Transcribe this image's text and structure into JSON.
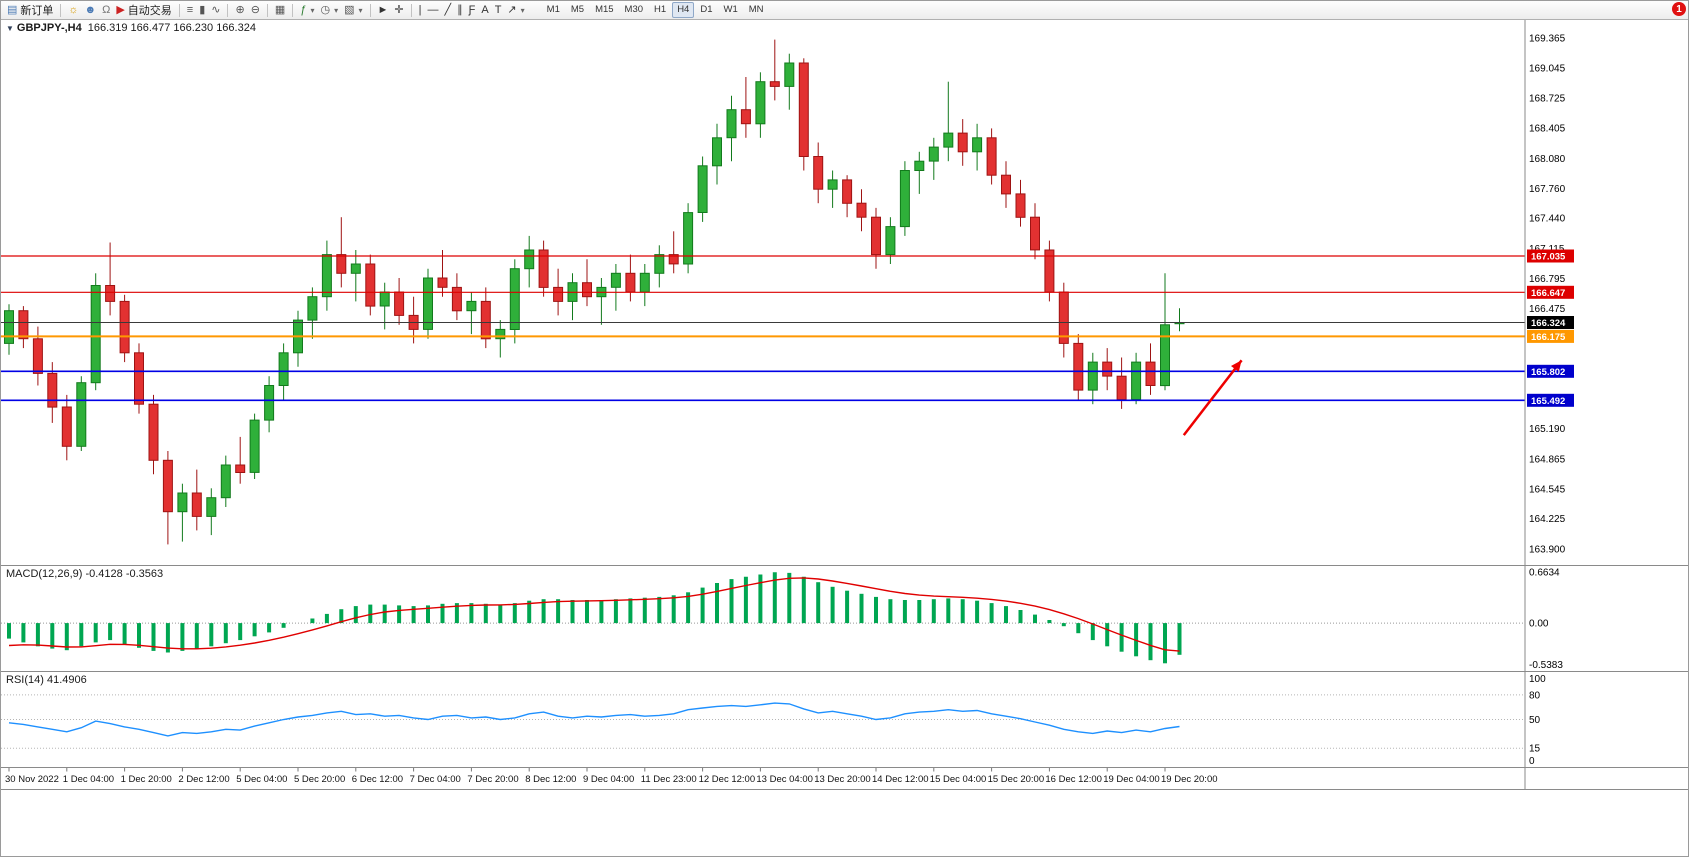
{
  "app": {
    "notification_count": "1"
  },
  "toolbar": {
    "items": [
      {
        "name": "new-order-button",
        "icon": "new-order-icon",
        "glyph": "▤",
        "glyph_color": "#4a7ab5",
        "label": "新订单"
      },
      {
        "sep": true
      },
      {
        "name": "charts-button",
        "icon": "bulb-icon",
        "glyph": "☼",
        "glyph_color": "#d79b00"
      },
      {
        "name": "profile-button",
        "icon": "person-icon",
        "glyph": "☻",
        "glyph_color": "#4a7ab5"
      },
      {
        "name": "sounds-button",
        "icon": "headset-icon",
        "glyph": "Ω",
        "glyph_color": "#777777"
      },
      {
        "name": "auto-trading-button",
        "icon": "play-icon",
        "glyph": "▶",
        "glyph_color": "#cc2222",
        "label": "自动交易"
      },
      {
        "sep": true
      },
      {
        "name": "bar-chart-button",
        "icon": "bar-chart-icon",
        "glyph": "≡",
        "glyph_color": "#555555"
      },
      {
        "name": "candlestick-chart-button",
        "icon": "candlestick-icon",
        "glyph": "▮",
        "glyph_color": "#555555"
      },
      {
        "name": "line-chart-button",
        "icon": "line-chart-icon",
        "glyph": "∿",
        "glyph_color": "#555555"
      },
      {
        "sep": true
      },
      {
        "name": "zoom-in-button",
        "icon": "zoom-in-icon",
        "glyph": "⊕",
        "glyph_color": "#555555"
      },
      {
        "name": "zoom-out-button",
        "icon": "zoom-out-icon",
        "glyph": "⊖",
        "glyph_color": "#555555"
      },
      {
        "sep": true
      },
      {
        "name": "tile-windows-button",
        "icon": "tile-windows-icon",
        "glyph": "▦",
        "glyph_color": "#555555"
      },
      {
        "sep": true
      },
      {
        "name": "indicators-button",
        "icon": "indicators-icon",
        "glyph": "ƒ",
        "glyph_color": "#2e7d32",
        "caret": true
      },
      {
        "name": "periods-button",
        "icon": "clock-icon",
        "glyph": "◷",
        "glyph_color": "#555555",
        "caret": true
      },
      {
        "name": "templates-button",
        "icon": "template-icon",
        "glyph": "▧",
        "glyph_color": "#555555",
        "caret": true
      },
      {
        "sep": true
      },
      {
        "name": "cursor-button",
        "icon": "cursor-icon",
        "glyph": "►",
        "glyph_color": "#333333"
      },
      {
        "name": "crosshair-button",
        "icon": "crosshair-icon",
        "glyph": "✛",
        "glyph_color": "#333333"
      },
      {
        "sep": true
      },
      {
        "name": "vertical-line-button",
        "icon": "vertical-line-icon",
        "glyph": "|",
        "glyph_color": "#333333"
      },
      {
        "name": "horizontal-line-button",
        "icon": "horizontal-line-icon",
        "glyph": "—",
        "glyph_color": "#333333"
      },
      {
        "name": "trendline-button",
        "icon": "trendline-icon",
        "glyph": "╱",
        "glyph_color": "#333333"
      },
      {
        "name": "channel-button",
        "icon": "channel-icon",
        "glyph": "∥",
        "glyph_color": "#333333"
      },
      {
        "name": "fibonacci-button",
        "icon": "fibonacci-icon",
        "glyph": "Ƒ",
        "glyph_color": "#333333"
      },
      {
        "name": "text-button",
        "icon": "text-icon",
        "glyph": "A",
        "glyph_color": "#333333"
      },
      {
        "name": "label-button",
        "icon": "label-icon",
        "glyph": "T",
        "glyph_color": "#333333"
      },
      {
        "name": "arrows-button",
        "icon": "arrow-object-icon",
        "glyph": "↗",
        "glyph_color": "#333333",
        "caret": true
      }
    ],
    "timeframes": [
      "M1",
      "M5",
      "M15",
      "M30",
      "H1",
      "H4",
      "D1",
      "W1",
      "MN"
    ],
    "active_timeframe": "H4"
  },
  "main_chart": {
    "symbol": "GBPJPY-,H4",
    "ohlc_text": "166.319 166.477 166.230 166.324"
  },
  "macd": {
    "label": "MACD(12,26,9) -0.4128 -0.3563",
    "axis_labels": [
      "0.6634",
      "0.00",
      "-0.5383"
    ]
  },
  "rsi": {
    "label": "RSI(14) 41.4906",
    "axis_labels": [
      "100",
      "80",
      "50",
      "15",
      "0"
    ]
  },
  "chart_data": {
    "type": "candlestick",
    "symbol": "GBPJPY-",
    "timeframe": "H4",
    "ohlc_current": {
      "open": 166.319,
      "high": 166.477,
      "low": 166.23,
      "close": 166.324
    },
    "price_axis": {
      "min": 163.9,
      "max": 169.365,
      "labels": [
        "169.365",
        "169.045",
        "168.725",
        "168.405",
        "168.080",
        "167.760",
        "167.440",
        "167.115",
        "166.795",
        "166.475",
        "165.190",
        "164.865",
        "164.545",
        "164.225",
        "163.900"
      ]
    },
    "time_labels": [
      "30 Nov 2022",
      "1 Dec 04:00",
      "1 Dec 20:00",
      "2 Dec 12:00",
      "5 Dec 04:00",
      "5 Dec 20:00",
      "6 Dec 12:00",
      "7 Dec 04:00",
      "7 Dec 20:00",
      "8 Dec 12:00",
      "9 Dec 04:00",
      "11 Dec 23:00",
      "12 Dec 12:00",
      "13 Dec 04:00",
      "13 Dec 20:00",
      "14 Dec 12:00",
      "15 Dec 04:00",
      "15 Dec 20:00",
      "16 Dec 12:00",
      "19 Dec 04:00",
      "19 Dec 20:00"
    ],
    "bars_per_label": 4,
    "candles": [
      [
        166.1,
        166.52,
        165.98,
        166.45
      ],
      [
        166.45,
        166.5,
        166.05,
        166.15
      ],
      [
        166.15,
        166.28,
        165.65,
        165.78
      ],
      [
        165.78,
        165.9,
        165.25,
        165.42
      ],
      [
        165.42,
        165.55,
        164.85,
        165.0
      ],
      [
        165.0,
        165.75,
        164.95,
        165.68
      ],
      [
        165.68,
        166.85,
        165.6,
        166.72
      ],
      [
        166.72,
        167.18,
        166.4,
        166.55
      ],
      [
        166.55,
        166.62,
        165.9,
        166.0
      ],
      [
        166.0,
        166.1,
        165.35,
        165.45
      ],
      [
        165.45,
        165.55,
        164.7,
        164.85
      ],
      [
        164.85,
        164.95,
        163.95,
        164.3
      ],
      [
        164.3,
        164.6,
        163.98,
        164.5
      ],
      [
        164.5,
        164.75,
        164.1,
        164.25
      ],
      [
        164.25,
        164.55,
        164.05,
        164.45
      ],
      [
        164.45,
        164.9,
        164.35,
        164.8
      ],
      [
        164.8,
        165.1,
        164.6,
        164.72
      ],
      [
        164.72,
        165.35,
        164.65,
        165.28
      ],
      [
        165.28,
        165.75,
        165.15,
        165.65
      ],
      [
        165.65,
        166.1,
        165.5,
        166.0
      ],
      [
        166.0,
        166.45,
        165.85,
        166.35
      ],
      [
        166.35,
        166.7,
        166.15,
        166.6
      ],
      [
        166.6,
        167.2,
        166.45,
        167.05
      ],
      [
        167.05,
        167.45,
        166.7,
        166.85
      ],
      [
        166.85,
        167.1,
        166.55,
        166.95
      ],
      [
        166.95,
        167.05,
        166.4,
        166.5
      ],
      [
        166.5,
        166.75,
        166.25,
        166.65
      ],
      [
        166.65,
        166.8,
        166.3,
        166.4
      ],
      [
        166.4,
        166.6,
        166.1,
        166.25
      ],
      [
        166.25,
        166.9,
        166.15,
        166.8
      ],
      [
        166.8,
        167.1,
        166.6,
        166.7
      ],
      [
        166.7,
        166.85,
        166.35,
        166.45
      ],
      [
        166.45,
        166.65,
        166.2,
        166.55
      ],
      [
        166.55,
        166.7,
        166.05,
        166.15
      ],
      [
        166.15,
        166.35,
        165.95,
        166.25
      ],
      [
        166.25,
        167.0,
        166.1,
        166.9
      ],
      [
        166.9,
        167.25,
        166.7,
        167.1
      ],
      [
        167.1,
        167.2,
        166.6,
        166.7
      ],
      [
        166.7,
        166.9,
        166.4,
        166.55
      ],
      [
        166.55,
        166.85,
        166.35,
        166.75
      ],
      [
        166.75,
        167.0,
        166.5,
        166.6
      ],
      [
        166.6,
        166.8,
        166.3,
        166.7
      ],
      [
        166.7,
        166.95,
        166.45,
        166.85
      ],
      [
        166.85,
        167.05,
        166.55,
        166.65
      ],
      [
        166.65,
        166.95,
        166.5,
        166.85
      ],
      [
        166.85,
        167.15,
        166.7,
        167.05
      ],
      [
        167.05,
        167.3,
        166.85,
        166.95
      ],
      [
        166.95,
        167.6,
        166.85,
        167.5
      ],
      [
        167.5,
        168.1,
        167.4,
        168.0
      ],
      [
        168.0,
        168.45,
        167.8,
        168.3
      ],
      [
        168.3,
        168.75,
        168.05,
        168.6
      ],
      [
        168.6,
        168.95,
        168.3,
        168.45
      ],
      [
        168.45,
        169.0,
        168.3,
        168.9
      ],
      [
        168.9,
        169.35,
        168.7,
        168.85
      ],
      [
        168.85,
        169.2,
        168.6,
        169.1
      ],
      [
        169.1,
        169.15,
        167.95,
        168.1
      ],
      [
        168.1,
        168.25,
        167.6,
        167.75
      ],
      [
        167.75,
        167.95,
        167.55,
        167.85
      ],
      [
        167.85,
        167.9,
        167.45,
        167.6
      ],
      [
        167.6,
        167.75,
        167.3,
        167.45
      ],
      [
        167.45,
        167.55,
        166.9,
        167.05
      ],
      [
        167.05,
        167.45,
        166.95,
        167.35
      ],
      [
        167.35,
        168.05,
        167.25,
        167.95
      ],
      [
        167.95,
        168.15,
        167.7,
        168.05
      ],
      [
        168.05,
        168.3,
        167.85,
        168.2
      ],
      [
        168.2,
        168.9,
        168.05,
        168.35
      ],
      [
        168.35,
        168.5,
        168.0,
        168.15
      ],
      [
        168.15,
        168.45,
        167.95,
        168.3
      ],
      [
        168.3,
        168.4,
        167.8,
        167.9
      ],
      [
        167.9,
        168.05,
        167.55,
        167.7
      ],
      [
        167.7,
        167.85,
        167.35,
        167.45
      ],
      [
        167.45,
        167.6,
        167.0,
        167.1
      ],
      [
        167.1,
        167.2,
        166.55,
        166.65
      ],
      [
        166.65,
        166.75,
        165.95,
        166.1
      ],
      [
        166.1,
        166.2,
        165.5,
        165.6
      ],
      [
        165.6,
        166.0,
        165.45,
        165.9
      ],
      [
        165.9,
        166.05,
        165.6,
        165.75
      ],
      [
        165.75,
        165.95,
        165.4,
        165.5
      ],
      [
        165.5,
        166.0,
        165.45,
        165.9
      ],
      [
        165.9,
        166.1,
        165.55,
        165.65
      ],
      [
        165.65,
        166.85,
        165.6,
        166.3
      ],
      [
        166.319,
        166.477,
        166.23,
        166.324
      ]
    ],
    "hlines": [
      {
        "price": 167.035,
        "color": "#dd0000",
        "width": 1.2,
        "badge": "167.035",
        "badge_color": "#dd0000"
      },
      {
        "price": 166.647,
        "color": "#dd0000",
        "width": 1.2,
        "badge": "166.647",
        "badge_color": "#dd0000"
      },
      {
        "price": 166.324,
        "color": "#3a3a3a",
        "width": 1,
        "badge": "166.324",
        "badge_color": "#000000"
      },
      {
        "price": 166.175,
        "color": "#ff9800",
        "width": 2,
        "badge": "166.175",
        "badge_color": "#ff9800"
      },
      {
        "price": 165.802,
        "color": "#0000e6",
        "width": 1.6,
        "badge": "165.802",
        "badge_color": "#0000cc"
      },
      {
        "price": 165.492,
        "color": "#0000e6",
        "width": 1.6,
        "badge": "165.492",
        "badge_color": "#0000cc"
      }
    ],
    "arrow_annotation": {
      "color": "#ee0000",
      "from_bar": 81.3,
      "from_price": 165.12,
      "to_bar": 85.3,
      "to_price": 165.92
    },
    "candle_colors": {
      "up_fill": "#2fb03a",
      "up_stroke": "#127a1c",
      "down_fill": "#e23131",
      "down_stroke": "#9e1313"
    },
    "macd": {
      "params": "12,26,9",
      "last_macd": -0.4128,
      "last_signal": -0.3563,
      "scale_max": 0.6634,
      "scale_min": -0.5383,
      "histogram_color": "#00a651",
      "signal_color": "#e00000",
      "values": [
        -0.2,
        -0.25,
        -0.3,
        -0.33,
        -0.35,
        -0.3,
        -0.25,
        -0.22,
        -0.28,
        -0.32,
        -0.36,
        -0.38,
        -0.36,
        -0.33,
        -0.3,
        -0.26,
        -0.22,
        -0.17,
        -0.12,
        -0.06,
        0.0,
        0.06,
        0.12,
        0.18,
        0.22,
        0.24,
        0.24,
        0.23,
        0.22,
        0.23,
        0.25,
        0.26,
        0.26,
        0.25,
        0.24,
        0.26,
        0.29,
        0.31,
        0.31,
        0.3,
        0.3,
        0.3,
        0.31,
        0.32,
        0.33,
        0.34,
        0.36,
        0.4,
        0.46,
        0.52,
        0.57,
        0.6,
        0.63,
        0.66,
        0.65,
        0.6,
        0.53,
        0.47,
        0.42,
        0.38,
        0.34,
        0.31,
        0.3,
        0.3,
        0.31,
        0.32,
        0.31,
        0.29,
        0.26,
        0.22,
        0.17,
        0.11,
        0.04,
        -0.04,
        -0.13,
        -0.22,
        -0.3,
        -0.37,
        -0.43,
        -0.48,
        -0.52,
        -0.41
      ]
    },
    "rsi": {
      "period": 14,
      "last": 41.4906,
      "levels": [
        80,
        50,
        15
      ],
      "line_color": "#1e90ff",
      "values": [
        46,
        44,
        41,
        38,
        35,
        40,
        48,
        45,
        41,
        38,
        34,
        30,
        34,
        33,
        35,
        38,
        37,
        42,
        46,
        50,
        53,
        55,
        58,
        60,
        56,
        57,
        54,
        55,
        52,
        50,
        54,
        55,
        52,
        53,
        50,
        52,
        57,
        59,
        54,
        52,
        54,
        53,
        55,
        56,
        54,
        55,
        57,
        62,
        64,
        66,
        67,
        66,
        68,
        70,
        69,
        63,
        58,
        60,
        57,
        54,
        50,
        52,
        57,
        59,
        60,
        62,
        60,
        61,
        57,
        54,
        51,
        47,
        43,
        38,
        35,
        33,
        36,
        34,
        37,
        35,
        39,
        41.5
      ]
    }
  }
}
